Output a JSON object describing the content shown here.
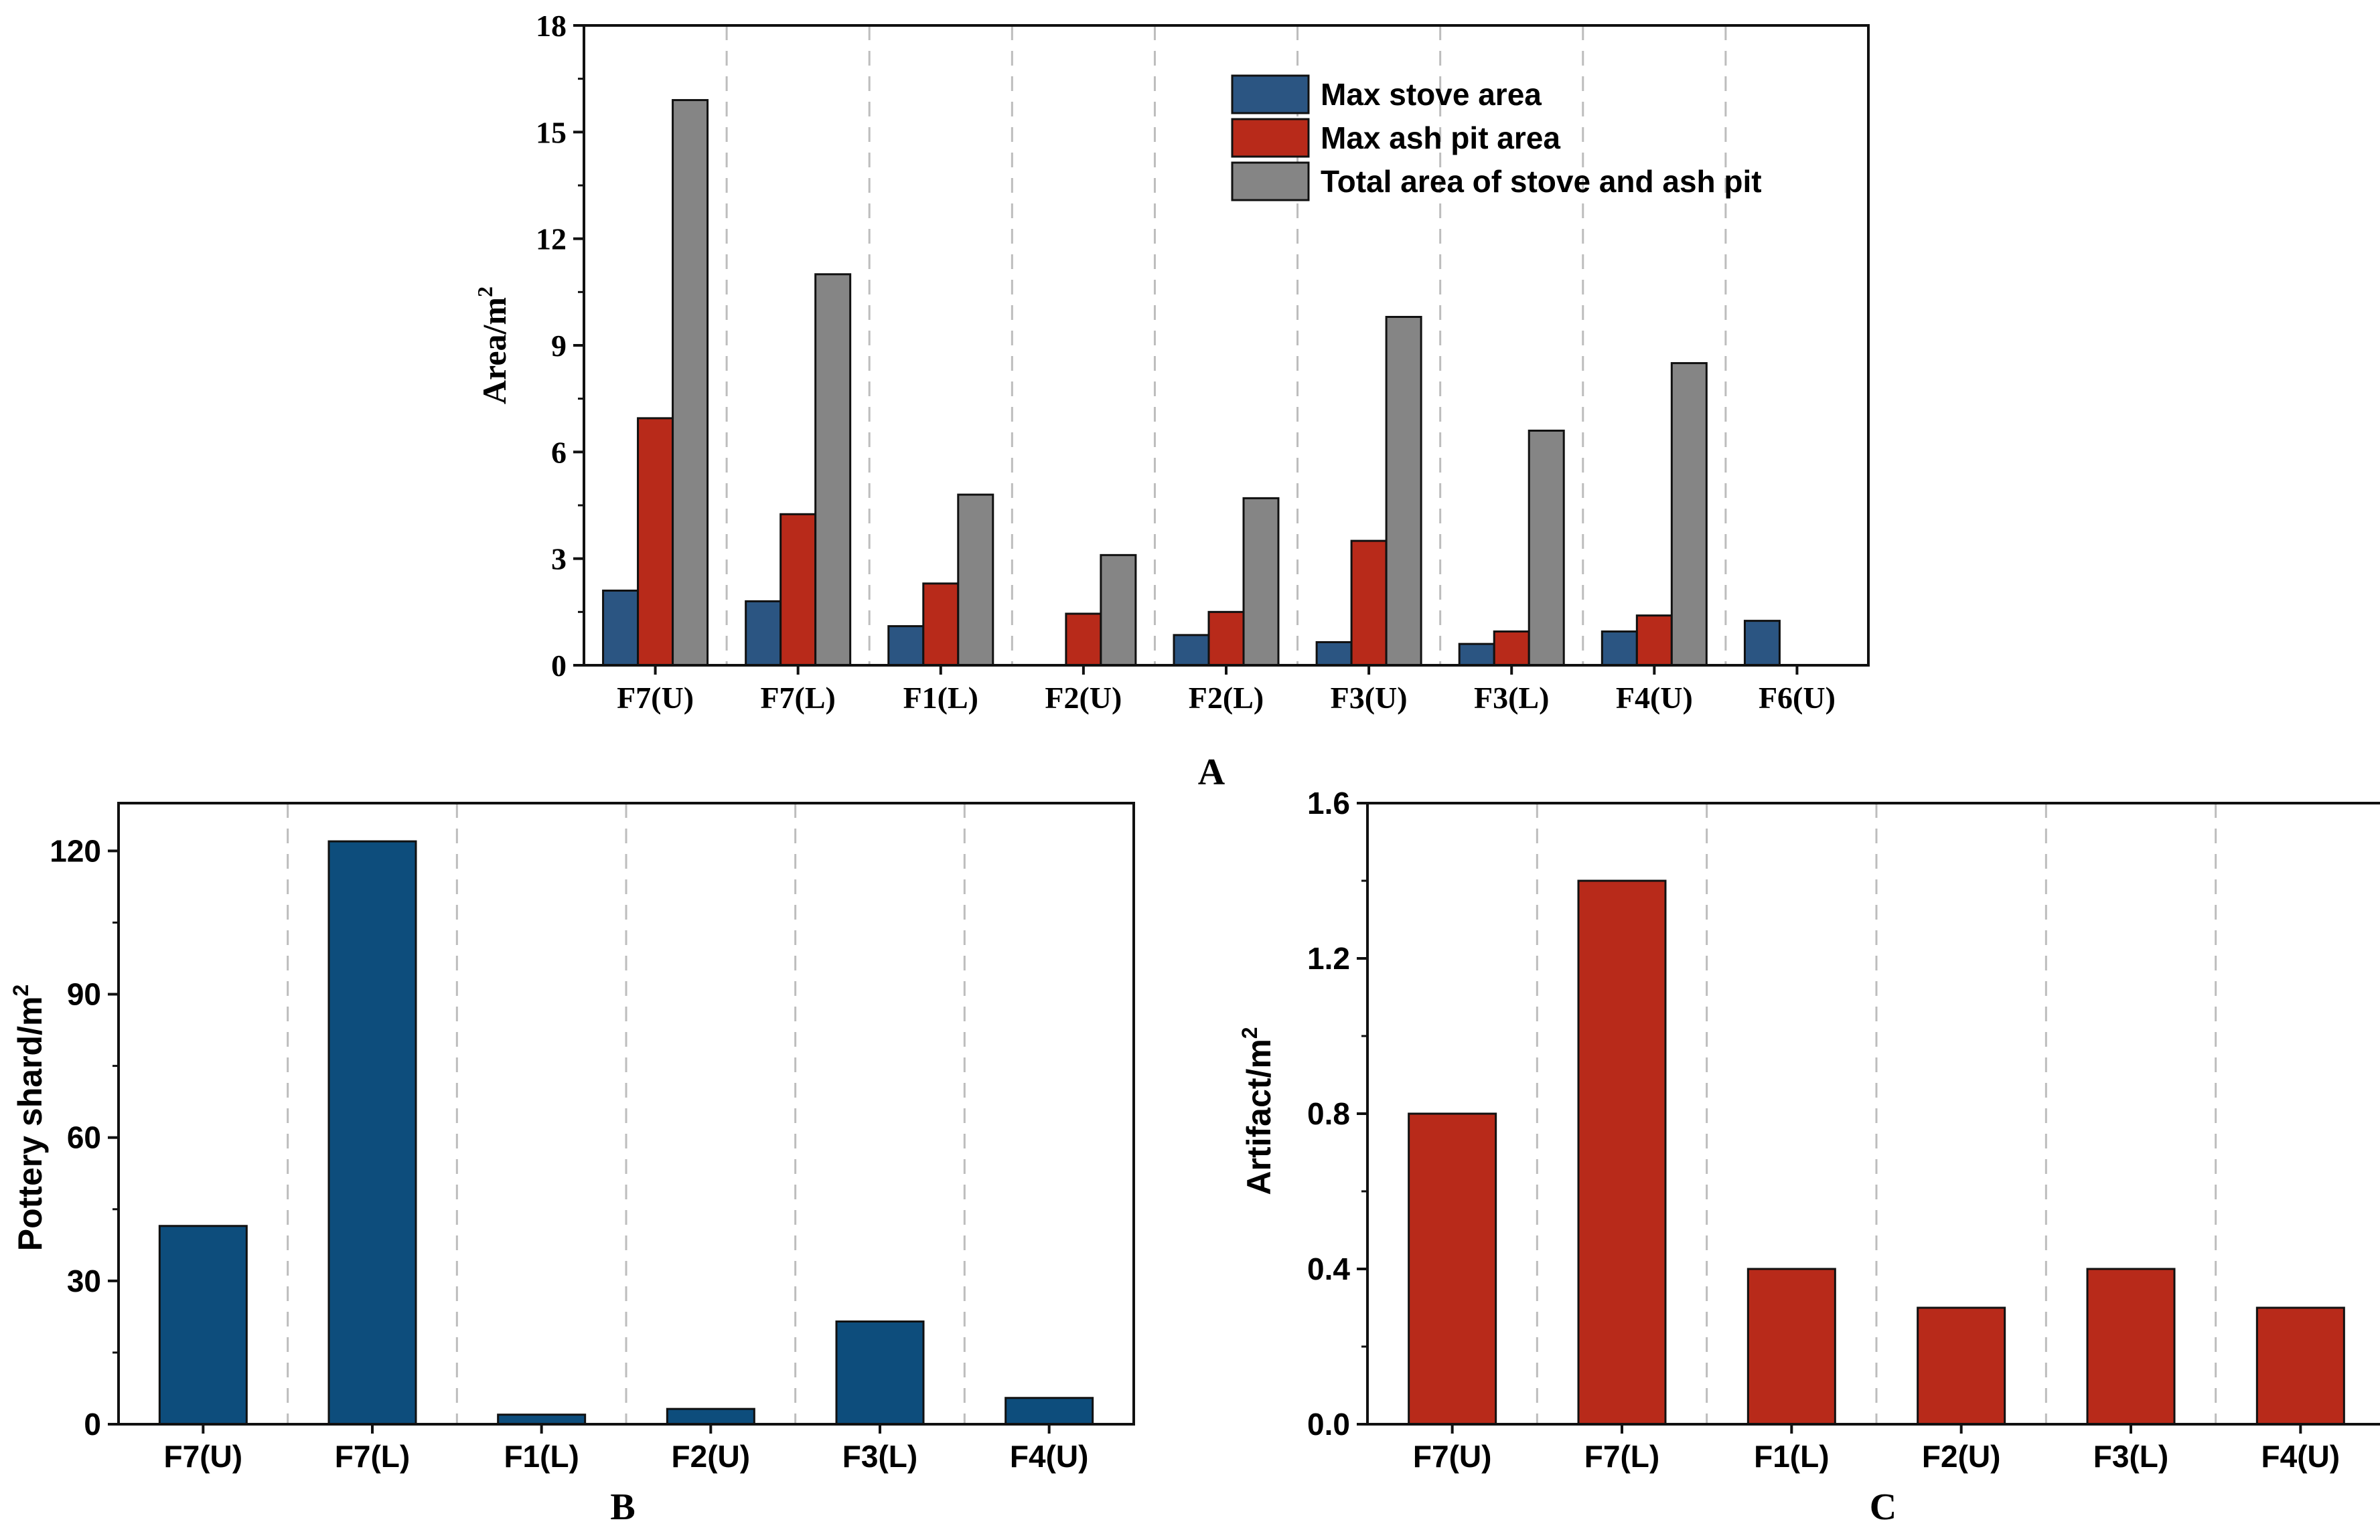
{
  "chart_data": [
    {
      "panel": "A",
      "type": "bar",
      "categories": [
        "F7(U)",
        "F7(L)",
        "F1(L)",
        "F2(U)",
        "F2(L)",
        "F3(U)",
        "F3(L)",
        "F4(U)",
        "F6(U)"
      ],
      "series": [
        {
          "name": "Max stove area",
          "color": "#2b5582",
          "values": [
            2.1,
            1.8,
            1.1,
            0,
            0.85,
            0.65,
            0.6,
            0.95,
            1.25
          ]
        },
        {
          "name": "Max ash pit area",
          "color": "#b82a1a",
          "values": [
            6.95,
            4.25,
            2.3,
            1.45,
            1.5,
            3.5,
            0.95,
            1.4,
            0
          ]
        },
        {
          "name": "Total area of stove and ash pit",
          "color": "#858585",
          "values": [
            15.9,
            11.0,
            4.8,
            3.1,
            4.7,
            9.8,
            6.6,
            8.5,
            0
          ]
        }
      ],
      "ylabel": "Area/m",
      "ylabel_sup": "2",
      "xlabel": "",
      "ylim": [
        0,
        18
      ],
      "yticks": [
        "0",
        "3",
        "6",
        "9",
        "12",
        "15",
        "18"
      ],
      "legend": "top-right",
      "grid": "vertical dashed separators"
    },
    {
      "panel": "B",
      "type": "bar",
      "categories": [
        "F7(U)",
        "F7(L)",
        "F1(L)",
        "F2(U)",
        "F3(L)",
        "F4(U)"
      ],
      "series": [
        {
          "name": "Pottery shard",
          "color": "#0d4d7c",
          "values": [
            41.5,
            122,
            2,
            3.2,
            21.5,
            5.5
          ]
        }
      ],
      "ylabel": "Pottery shard/m",
      "ylabel_sup": "2",
      "xlabel": "",
      "ylim": [
        0,
        130
      ],
      "yticks": [
        "0",
        "30",
        "60",
        "90",
        "120"
      ],
      "grid": "vertical dashed separators"
    },
    {
      "panel": "C",
      "type": "bar",
      "categories": [
        "F7(U)",
        "F7(L)",
        "F1(L)",
        "F2(U)",
        "F3(L)",
        "F4(U)"
      ],
      "series": [
        {
          "name": "Artifact",
          "color": "#b82a1a",
          "values": [
            0.8,
            1.4,
            0.4,
            0.3,
            0.4,
            0.3
          ]
        }
      ],
      "ylabel": "Artifact/m",
      "ylabel_sup": "2",
      "xlabel": "",
      "ylim": [
        0,
        1.6
      ],
      "yticks": [
        "0.0",
        "0.4",
        "0.8",
        "1.2",
        "1.6"
      ],
      "grid": "vertical dashed separators"
    }
  ]
}
